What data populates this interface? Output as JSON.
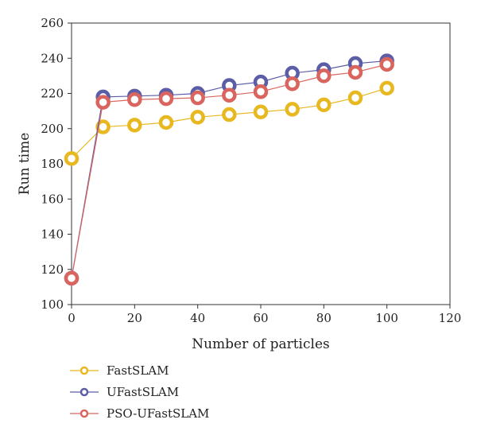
{
  "chart_data": {
    "type": "line",
    "xlabel": "Number of particles",
    "ylabel": "Run time",
    "xlim": [
      0,
      120
    ],
    "ylim": [
      100,
      260
    ],
    "xticks": [
      0,
      20,
      40,
      60,
      80,
      100,
      120
    ],
    "yticks": [
      100,
      120,
      140,
      160,
      180,
      200,
      220,
      240,
      260
    ],
    "grid": false,
    "legend_position": "bottom-left, below plot",
    "x": [
      0,
      10,
      20,
      30,
      40,
      50,
      60,
      70,
      80,
      90,
      100
    ],
    "series": [
      {
        "name": "FastSLAM",
        "color": "#E8B820",
        "marker": "hollow-circle",
        "values": [
          183,
          201,
          202,
          203.5,
          206.5,
          208,
          209.5,
          211,
          213.5,
          217.5,
          223
        ]
      },
      {
        "name": "UFastSLAM",
        "color": "#5B5EA6",
        "marker": "hollow-circle",
        "values": [
          115,
          218,
          218.5,
          219,
          220,
          224.5,
          226.5,
          231.5,
          233.5,
          237,
          238.5
        ]
      },
      {
        "name": "PSO-UFastSLAM",
        "color": "#D9655E",
        "marker": "hollow-circle",
        "values": [
          115,
          215,
          216.5,
          217,
          217.5,
          219,
          221,
          225.5,
          230,
          232,
          236.5
        ]
      }
    ]
  }
}
